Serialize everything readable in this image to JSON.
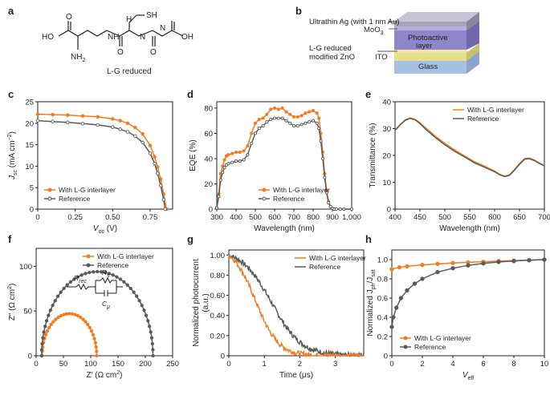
{
  "colors": {
    "orange": "#f47c20",
    "gray": "#5a5a5a",
    "axis": "#231f20"
  },
  "panels": {
    "a": {
      "label": "a",
      "structure_atoms": [
        "HO",
        "O",
        "NH",
        "SH",
        "H",
        "N",
        "O",
        "N",
        "O",
        "OH",
        "NH"
      ],
      "amine_sub": "2",
      "caption": "L-G reduced"
    },
    "b": {
      "label": "b",
      "layers": [
        "Ultrathin Ag (with 1 nm Au)",
        "MoO",
        "Photoactive",
        "layer",
        "L-G reduced",
        "modified ZnO",
        "ITO",
        "Glass"
      ],
      "moo_sub": "3"
    }
  },
  "chart_data": [
    {
      "panel": "c",
      "type": "line",
      "xlabel_main": "V",
      "xlabel_sub": "oc",
      "xlabel_unit": " (V)",
      "ylabel_main": "J",
      "ylabel_sub": "sc",
      "ylabel_unit": " (mA cm",
      "ylabel_sup": "−2",
      "ylabel_close": ")",
      "xlim": [
        0,
        0.9
      ],
      "ylim": [
        0,
        25
      ],
      "xticks": [
        0,
        0.25,
        0.5,
        0.75
      ],
      "xtick_labels": [
        "0",
        "0.25",
        "0.50",
        "0.75"
      ],
      "yticks": [
        0,
        5,
        10,
        15,
        20,
        25
      ],
      "ytick_labels": [
        "0",
        "5",
        "10",
        "15",
        "20",
        "25"
      ],
      "legend": [
        "With L-G interlayer",
        "Reference"
      ],
      "series": [
        {
          "name": "With L-G interlayer",
          "color": "orange",
          "marker": "filled",
          "x": [
            0,
            0.1,
            0.2,
            0.3,
            0.4,
            0.5,
            0.55,
            0.6,
            0.65,
            0.7,
            0.75,
            0.78,
            0.8,
            0.82,
            0.84,
            0.86
          ],
          "y": [
            22.1,
            22.0,
            21.9,
            21.7,
            21.5,
            21.0,
            20.6,
            20.0,
            19.0,
            17.5,
            14.8,
            12.2,
            9.8,
            7.0,
            3.5,
            0
          ]
        },
        {
          "name": "Reference",
          "color": "gray",
          "marker": "open",
          "x": [
            0,
            0.1,
            0.2,
            0.3,
            0.4,
            0.5,
            0.55,
            0.6,
            0.65,
            0.7,
            0.75,
            0.78,
            0.8,
            0.82,
            0.84,
            0.85
          ],
          "y": [
            20.6,
            20.4,
            20.2,
            19.9,
            19.6,
            19.1,
            18.6,
            18.0,
            17.0,
            15.5,
            13.0,
            10.6,
            8.3,
            5.5,
            2.2,
            0
          ]
        }
      ]
    },
    {
      "panel": "d",
      "type": "line",
      "xlabel": "Wavelength (nm)",
      "ylabel": "EQE (%)",
      "xlim": [
        300,
        1000
      ],
      "ylim": [
        0,
        85
      ],
      "xticks": [
        300,
        400,
        500,
        600,
        700,
        800,
        900,
        1000
      ],
      "xtick_labels": [
        "300",
        "400",
        "500",
        "600",
        "700",
        "800",
        "900",
        "1,000"
      ],
      "yticks": [
        0,
        20,
        40,
        60,
        80
      ],
      "ytick_labels": [
        "0",
        "20",
        "40",
        "60",
        "80"
      ],
      "legend": [
        "With L-G interlayer",
        "Reference"
      ],
      "series": [
        {
          "name": "With L-G interlayer",
          "color": "orange",
          "marker": "filled",
          "x": [
            300,
            310,
            320,
            330,
            340,
            350,
            360,
            380,
            400,
            420,
            440,
            460,
            480,
            500,
            520,
            540,
            560,
            580,
            600,
            620,
            640,
            660,
            680,
            700,
            720,
            740,
            760,
            780,
            800,
            820,
            830,
            840,
            850,
            860,
            870,
            880,
            890,
            900,
            910,
            920,
            940,
            960,
            1000
          ],
          "y": [
            1,
            12,
            28,
            34,
            39,
            42,
            43,
            44,
            45,
            45,
            46,
            50,
            60,
            68,
            71,
            72,
            75,
            79,
            80,
            79,
            80,
            77,
            75,
            73,
            73,
            74,
            76,
            77,
            78,
            76,
            72,
            60,
            45,
            28,
            15,
            6,
            2,
            0.5,
            0,
            0,
            0,
            0,
            0
          ]
        },
        {
          "name": "Reference",
          "color": "gray",
          "marker": "open",
          "x": [
            300,
            310,
            320,
            330,
            340,
            350,
            360,
            380,
            400,
            420,
            440,
            460,
            480,
            500,
            520,
            540,
            560,
            580,
            600,
            620,
            640,
            660,
            680,
            700,
            720,
            740,
            760,
            780,
            800,
            820,
            830,
            840,
            850,
            860,
            870,
            880,
            890,
            900,
            910,
            920,
            940,
            960,
            1000
          ],
          "y": [
            1,
            10,
            23,
            29,
            33,
            35,
            36,
            37,
            38,
            38,
            39,
            43,
            52,
            60,
            64,
            66,
            69,
            71,
            72,
            72,
            72,
            70,
            68,
            66,
            66,
            67,
            68,
            69,
            70,
            68,
            64,
            54,
            40,
            25,
            13,
            5,
            2,
            0.5,
            0,
            0,
            0,
            0,
            0
          ]
        }
      ]
    },
    {
      "panel": "e",
      "type": "line",
      "xlabel": "Wavelength (nm)",
      "ylabel": "Transmittance (%)",
      "xlim": [
        400,
        700
      ],
      "ylim": [
        0,
        40
      ],
      "xticks": [
        400,
        450,
        500,
        550,
        600,
        650,
        700
      ],
      "xtick_labels": [
        "400",
        "450",
        "500",
        "550",
        "600",
        "650",
        "700"
      ],
      "yticks": [
        0,
        10,
        20,
        30,
        40
      ],
      "ytick_labels": [
        "0",
        "10",
        "20",
        "30",
        "40"
      ],
      "legend": [
        "With L-G interlayer",
        "Reference"
      ],
      "series": [
        {
          "name": "With L-G interlayer",
          "color": "orange",
          "marker": "none",
          "x": [
            400,
            410,
            420,
            430,
            440,
            450,
            460,
            480,
            500,
            520,
            540,
            560,
            580,
            600,
            610,
            620,
            630,
            640,
            650,
            660,
            670,
            680,
            690,
            700
          ],
          "y": [
            29.5,
            31.5,
            33.2,
            34.0,
            33.5,
            32.2,
            30.5,
            27.3,
            24.5,
            22.0,
            19.8,
            17.6,
            16.0,
            14.2,
            13.0,
            12.3,
            12.8,
            14.8,
            17.0,
            18.8,
            19.0,
            18.3,
            17.2,
            16.3
          ]
        },
        {
          "name": "Reference",
          "color": "gray",
          "marker": "none",
          "x": [
            400,
            410,
            420,
            430,
            440,
            450,
            460,
            480,
            500,
            520,
            540,
            560,
            580,
            600,
            610,
            620,
            630,
            640,
            650,
            660,
            670,
            680,
            690,
            700
          ],
          "y": [
            29.3,
            31.3,
            33.0,
            33.8,
            33.3,
            31.9,
            30.0,
            26.8,
            24.0,
            21.5,
            19.4,
            17.2,
            15.6,
            13.9,
            12.8,
            12.1,
            12.6,
            14.5,
            16.7,
            18.6,
            18.8,
            18.1,
            17.0,
            16.1
          ]
        }
      ]
    },
    {
      "panel": "f",
      "type": "scatter",
      "xlabel_main": "Z′ (Ω cm",
      "xlabel_sup": "2",
      "xlabel_close": ")",
      "ylabel_main": "Z″ (Ω cm",
      "ylabel_sup": "2",
      "ylabel_close": ")",
      "xlim": [
        0,
        250
      ],
      "ylim": [
        0,
        120
      ],
      "xticks": [
        0,
        50,
        100,
        150,
        200,
        250
      ],
      "xtick_labels": [
        "0",
        "50",
        "100",
        "150",
        "200",
        "250"
      ],
      "yticks": [
        0,
        50,
        100
      ],
      "ytick_labels": [
        "0",
        "50",
        "100"
      ],
      "legend": [
        "With L-G interlayer",
        "Reference"
      ],
      "circuit": {
        "r_main": "R",
        "r_rec_sub": "rec",
        "rs_main": "R",
        "rs_sub": "s",
        "c_main": "C",
        "c_sub": "μ"
      },
      "series": [
        {
          "name": "With L-G interlayer",
          "color": "orange",
          "marker": "filled",
          "arc_center": 61,
          "arc_radius": 50,
          "arc_height": 47,
          "points": 30
        },
        {
          "name": "Reference",
          "color": "gray",
          "marker": "filled",
          "arc_center": 112,
          "arc_radius": 102,
          "arc_height": 94,
          "points": 44
        }
      ]
    },
    {
      "panel": "g",
      "type": "line",
      "xlabel": "Time (μs)",
      "ylabel": "Normalized photocurrent",
      "ylabel2": "(a.u.)",
      "xlim": [
        0,
        3.8
      ],
      "ylim": [
        0,
        1.05
      ],
      "xticks": [
        0,
        1,
        2,
        3
      ],
      "xtick_labels": [
        "0",
        "1",
        "2",
        "3"
      ],
      "yticks": [
        0,
        0.2,
        0.4,
        0.6,
        0.8,
        1.0
      ],
      "ytick_labels": [
        "0",
        "0.20",
        "0.40",
        "0.60",
        "0.80",
        "1.00"
      ],
      "legend": [
        "With L-G interlayer",
        "Reference"
      ],
      "series": [
        {
          "name": "With L-G interlayer",
          "color": "orange",
          "marker": "none",
          "t_half": 0.75,
          "width": 0.32
        },
        {
          "name": "Reference",
          "color": "gray",
          "marker": "none",
          "t_half": 1.2,
          "width": 0.42
        }
      ]
    },
    {
      "panel": "h",
      "type": "line",
      "xlabel_main": "V",
      "xlabel_sub": "eff",
      "ylabel_main": "Normalized J",
      "ylabel_sub1": "ph",
      "ylabel_slash": "/J",
      "ylabel_sub2": "sat",
      "xlim": [
        0,
        10
      ],
      "ylim": [
        0,
        1.1
      ],
      "xticks": [
        0,
        2,
        4,
        6,
        8,
        10
      ],
      "xtick_labels": [
        "0",
        "2",
        "4",
        "6",
        "8",
        "10"
      ],
      "yticks": [
        0,
        0.2,
        0.4,
        0.6,
        0.8,
        1.0
      ],
      "ytick_labels": [
        "0",
        "0.2",
        "0.4",
        "0.6",
        "0.8",
        "1.0"
      ],
      "legend": [
        "With L-G interlayer",
        "Reference"
      ],
      "series": [
        {
          "name": "With L-G interlayer",
          "color": "orange",
          "marker": "filled",
          "x": [
            0,
            0.5,
            1,
            2,
            3,
            4,
            5,
            6,
            7,
            8,
            9,
            10
          ],
          "y": [
            0.9,
            0.92,
            0.93,
            0.945,
            0.955,
            0.965,
            0.972,
            0.978,
            0.984,
            0.99,
            0.995,
            1.0
          ]
        },
        {
          "name": "Reference",
          "color": "gray",
          "marker": "filled",
          "x": [
            0,
            0.1,
            0.3,
            0.6,
            1,
            1.5,
            2,
            3,
            4,
            5,
            6,
            7,
            8,
            9,
            10
          ],
          "y": [
            0.3,
            0.4,
            0.5,
            0.6,
            0.68,
            0.75,
            0.8,
            0.87,
            0.91,
            0.94,
            0.96,
            0.975,
            0.985,
            0.993,
            1.0
          ]
        }
      ]
    }
  ]
}
